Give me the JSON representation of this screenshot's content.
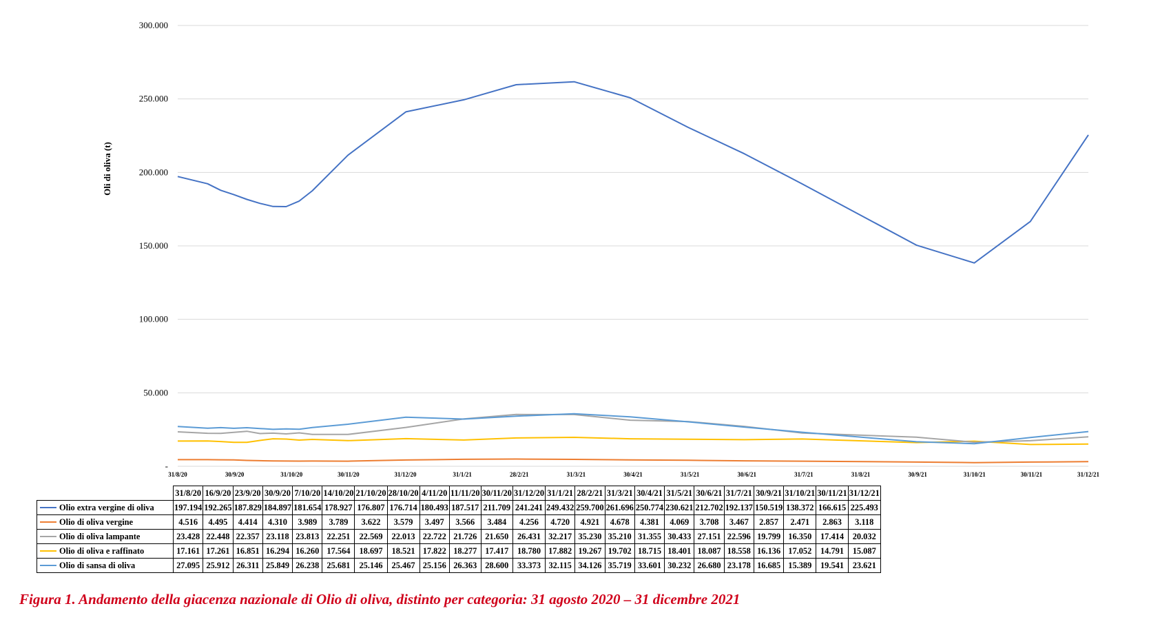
{
  "chart_data": {
    "type": "line",
    "ylabel": "Oli di oliva (t)",
    "ylim": [
      0,
      300000
    ],
    "yticks": [
      {
        "value": 0,
        "label": "-"
      },
      {
        "value": 50000,
        "label": "50.000"
      },
      {
        "value": 100000,
        "label": "100.000"
      },
      {
        "value": 150000,
        "label": "150.000"
      },
      {
        "value": 200000,
        "label": "200.000"
      },
      {
        "value": 250000,
        "label": "250.000"
      },
      {
        "value": 300000,
        "label": "300.000"
      }
    ],
    "x_axis_labels": [
      "31/8/20",
      "30/9/20",
      "31/10/20",
      "30/11/20",
      "31/12/20",
      "31/1/21",
      "28/2/21",
      "31/3/21",
      "30/4/21",
      "31/5/21",
      "30/6/21",
      "31/7/21",
      "31/8/21",
      "30/9/21",
      "31/10/21",
      "30/11/21",
      "31/12/21"
    ],
    "x_range": [
      "2020-08-31",
      "2021-12-31"
    ],
    "x_dates": [
      "2020-08-31",
      "2020-09-16",
      "2020-09-23",
      "2020-09-30",
      "2020-10-07",
      "2020-10-14",
      "2020-10-21",
      "2020-10-28",
      "2020-11-04",
      "2020-11-11",
      "2020-11-30",
      "2020-12-31",
      "2021-01-31",
      "2021-02-28",
      "2021-03-31",
      "2021-04-30",
      "2021-05-31",
      "2021-06-30",
      "2021-07-31",
      "2021-09-30",
      "2021-10-31",
      "2021-11-30",
      "2021-12-31"
    ],
    "grid": true,
    "legend": "table below chart",
    "categories": [
      "31/8/20",
      "16/9/20",
      "23/9/20",
      "30/9/20",
      "7/10/20",
      "14/10/20",
      "21/10/20",
      "28/10/20",
      "4/11/20",
      "11/11/20",
      "30/11/20",
      "31/12/20",
      "31/1/21",
      "28/2/21",
      "31/3/21",
      "30/4/21",
      "31/5/21",
      "30/6/21",
      "31/7/21",
      "30/9/21",
      "31/10/21",
      "30/11/21",
      "31/12/21"
    ],
    "series": [
      {
        "name": "Olio extra vergine di oliva",
        "color": "#4472c4",
        "values": [
          197194,
          192265,
          187829,
          184897,
          181654,
          178927,
          176807,
          176714,
          180493,
          187517,
          211709,
          241241,
          249432,
          259700,
          261696,
          250774,
          230621,
          212702,
          192137,
          150519,
          138372,
          166615,
          225493
        ],
        "labels": [
          "197.194",
          "192.265",
          "187.829",
          "184.897",
          "181.654",
          "178.927",
          "176.807",
          "176.714",
          "180.493",
          "187.517",
          "211.709",
          "241.241",
          "249.432",
          "259.700",
          "261.696",
          "250.774",
          "230.621",
          "212.702",
          "192.137",
          "150.519",
          "138.372",
          "166.615",
          "225.493"
        ]
      },
      {
        "name": "Olio di oliva vergine",
        "color": "#ed7d31",
        "values": [
          4516,
          4495,
          4414,
          4310,
          3989,
          3789,
          3622,
          3579,
          3497,
          3566,
          3484,
          4256,
          4720,
          4921,
          4678,
          4381,
          4069,
          3708,
          3467,
          2857,
          2471,
          2863,
          3118
        ],
        "labels": [
          "4.516",
          "4.495",
          "4.414",
          "4.310",
          "3.989",
          "3.789",
          "3.622",
          "3.579",
          "3.497",
          "3.566",
          "3.484",
          "4.256",
          "4.720",
          "4.921",
          "4.678",
          "4.381",
          "4.069",
          "3.708",
          "3.467",
          "2.857",
          "2.471",
          "2.863",
          "3.118"
        ]
      },
      {
        "name": "Olio di oliva lampante",
        "color": "#a5a5a5",
        "values": [
          23428,
          22448,
          22357,
          23118,
          23813,
          22251,
          22569,
          22013,
          22722,
          21726,
          21650,
          26431,
          32217,
          35230,
          35210,
          31355,
          30433,
          27151,
          22596,
          19799,
          16350,
          17414,
          20032
        ],
        "labels": [
          "23.428",
          "22.448",
          "22.357",
          "23.118",
          "23.813",
          "22.251",
          "22.569",
          "22.013",
          "22.722",
          "21.726",
          "21.650",
          "26.431",
          "32.217",
          "35.230",
          "35.210",
          "31.355",
          "30.433",
          "27.151",
          "22.596",
          "19.799",
          "16.350",
          "17.414",
          "20.032"
        ]
      },
      {
        "name": "Olio di oliva e raffinato",
        "color": "#ffc000",
        "values": [
          17161,
          17261,
          16851,
          16294,
          16260,
          17564,
          18697,
          18521,
          17822,
          18277,
          17417,
          18780,
          17882,
          19267,
          19702,
          18715,
          18401,
          18087,
          18558,
          16136,
          17052,
          14791,
          15087
        ],
        "labels": [
          "17.161",
          "17.261",
          "16.851",
          "16.294",
          "16.260",
          "17.564",
          "18.697",
          "18.521",
          "17.822",
          "18.277",
          "17.417",
          "18.780",
          "17.882",
          "19.267",
          "19.702",
          "18.715",
          "18.401",
          "18.087",
          "18.558",
          "16.136",
          "17.052",
          "14.791",
          "15.087"
        ]
      },
      {
        "name": "Olio di sansa di oliva",
        "color": "#5b9bd5",
        "values": [
          27095,
          25912,
          26311,
          25849,
          26238,
          25681,
          25146,
          25467,
          25156,
          26363,
          28600,
          33373,
          32115,
          34126,
          35719,
          33601,
          30232,
          26680,
          23178,
          16685,
          15389,
          19541,
          23621
        ],
        "labels": [
          "27.095",
          "25.912",
          "26.311",
          "25.849",
          "26.238",
          "25.681",
          "25.146",
          "25.467",
          "25.156",
          "26.363",
          "28.600",
          "33.373",
          "32.115",
          "34.126",
          "35.719",
          "33.601",
          "30.232",
          "26.680",
          "23.178",
          "16.685",
          "15.389",
          "19.541",
          "23.621"
        ]
      }
    ]
  },
  "caption": "Figura 1. Andamento della giacenza nazionale di Olio di oliva, distinto per categoria: 31 agosto 2020 – 31 dicembre 2021"
}
